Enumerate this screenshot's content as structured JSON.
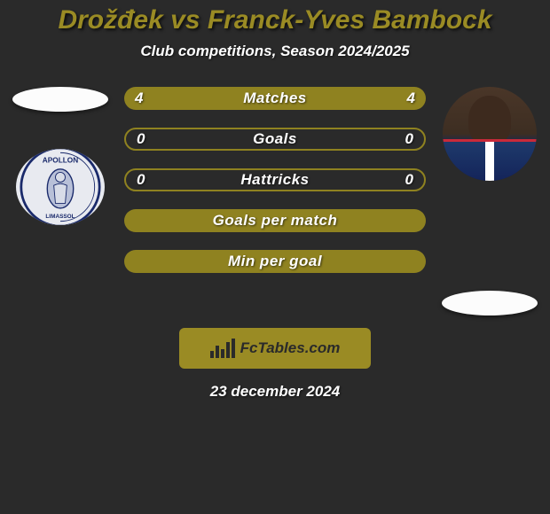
{
  "title": {
    "text": "Drožđek vs Franck-Yves Bambock",
    "color": "#9a8b24",
    "fontsize": 30
  },
  "subtitle": {
    "text": "Club competitions, Season 2024/2025",
    "color": "#ffffff",
    "fontsize": 17
  },
  "bars": {
    "value_color": "#ffffff",
    "label_color": "#ffffff",
    "fill_color": "#8f8220",
    "outline_color": "#8f8220",
    "label_fontsize": 17,
    "value_fontsize": 17,
    "items": [
      {
        "label": "Matches",
        "left": "4",
        "right": "4",
        "style": "fill"
      },
      {
        "label": "Goals",
        "left": "0",
        "right": "0",
        "style": "outline"
      },
      {
        "label": "Hattricks",
        "left": "0",
        "right": "0",
        "style": "outline"
      },
      {
        "label": "Goals per match",
        "left": "",
        "right": "",
        "style": "fill"
      },
      {
        "label": "Min per goal",
        "left": "",
        "right": "",
        "style": "fill"
      }
    ]
  },
  "logo_box": {
    "text": "FcTables.com",
    "bg_color": "#9a8b24",
    "text_color": "#2a2a2a",
    "fontsize": 17
  },
  "date": {
    "text": "23 december 2024",
    "color": "#ffffff",
    "fontsize": 17
  },
  "left_team": {
    "name": "apollon-limassol"
  },
  "right_player": {
    "name": "franck-yves-bambock"
  },
  "background_color": "#2a2a2a"
}
